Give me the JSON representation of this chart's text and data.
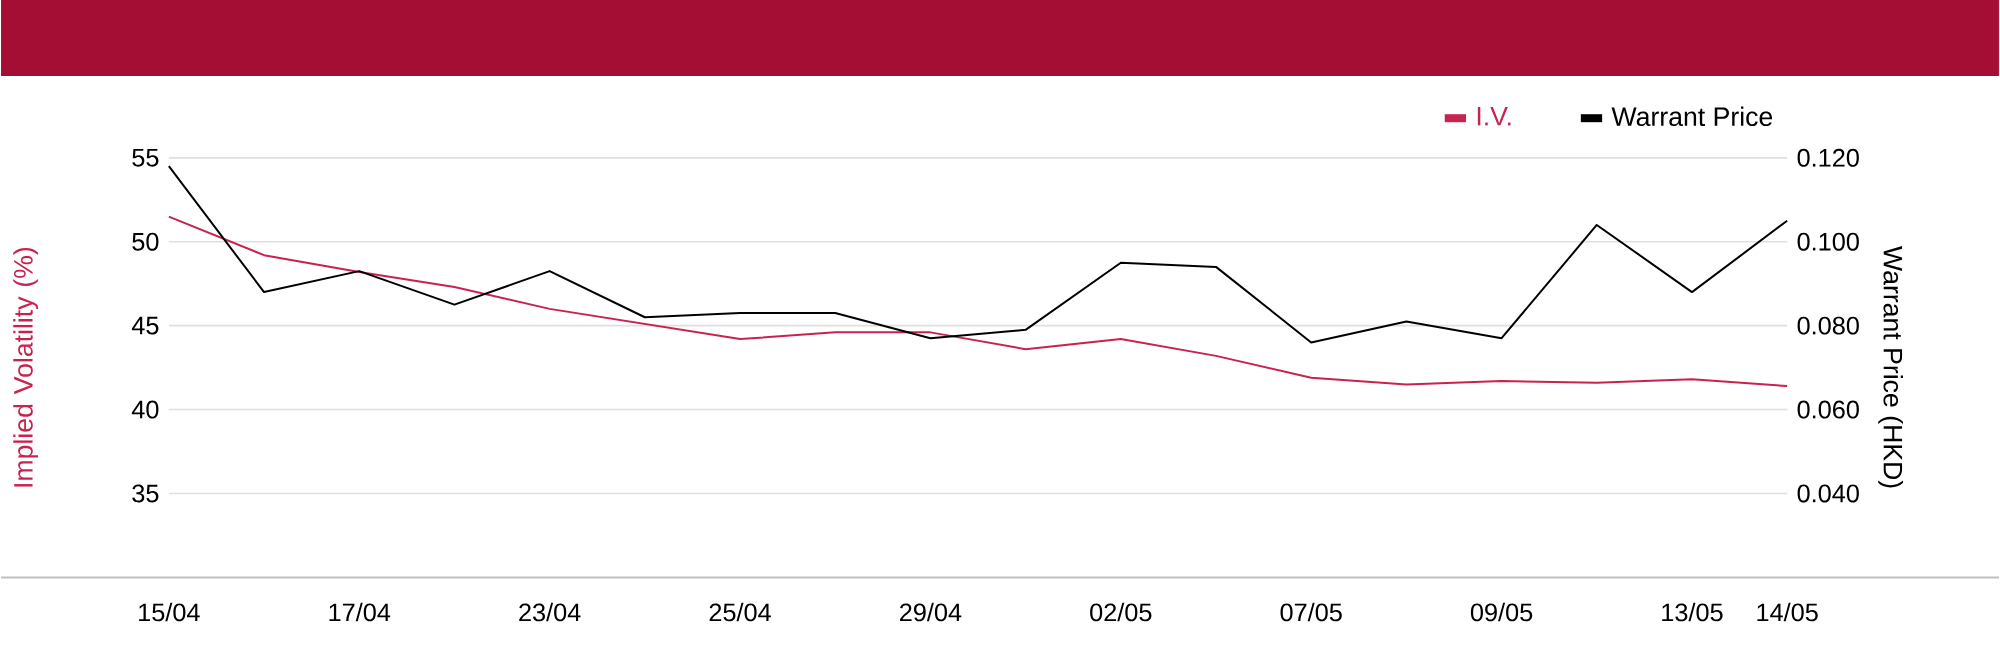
{
  "chart_data": {
    "type": "line",
    "categories": [
      "15/04",
      null,
      "17/04",
      null,
      "23/04",
      null,
      "25/04",
      null,
      "29/04",
      null,
      "02/05",
      null,
      "07/05",
      null,
      "09/05",
      null,
      "13/05",
      "14/05"
    ],
    "series": [
      {
        "name": "I.V.",
        "color": "#c8234f",
        "values": [
          51.5,
          49.2,
          48.2,
          47.3,
          46.0,
          45.1,
          44.2,
          44.6,
          44.6,
          43.6,
          44.2,
          43.2,
          41.9,
          41.5,
          41.7,
          41.6,
          41.8,
          41.4
        ]
      },
      {
        "name": "Warrant Price",
        "color": "#000000",
        "axis": "y2",
        "values": [
          0.118,
          0.088,
          0.093,
          0.085,
          0.093,
          0.082,
          0.083,
          0.083,
          0.077,
          0.079,
          0.095,
          0.094,
          0.076,
          0.081,
          0.077,
          0.104,
          0.088,
          0.105
        ]
      }
    ],
    "ylabel": "Implied Volatility (%)",
    "y2label": "Warrant Price (HKD)",
    "ylim": [
      30,
      55
    ],
    "yticks": [
      35,
      40,
      45,
      50,
      55
    ],
    "y2lim": [
      0.02,
      0.12
    ],
    "y2ticks": [
      {
        "value": 0.04,
        "label": "0.040"
      },
      {
        "value": 0.06,
        "label": "0.060"
      },
      {
        "value": 0.08,
        "label": "0.080"
      },
      {
        "value": 0.1,
        "label": "0.100"
      },
      {
        "value": 0.12,
        "label": "0.120"
      }
    ],
    "grid": "y",
    "legend": "top right",
    "marker": "none",
    "line_style": "solid"
  }
}
